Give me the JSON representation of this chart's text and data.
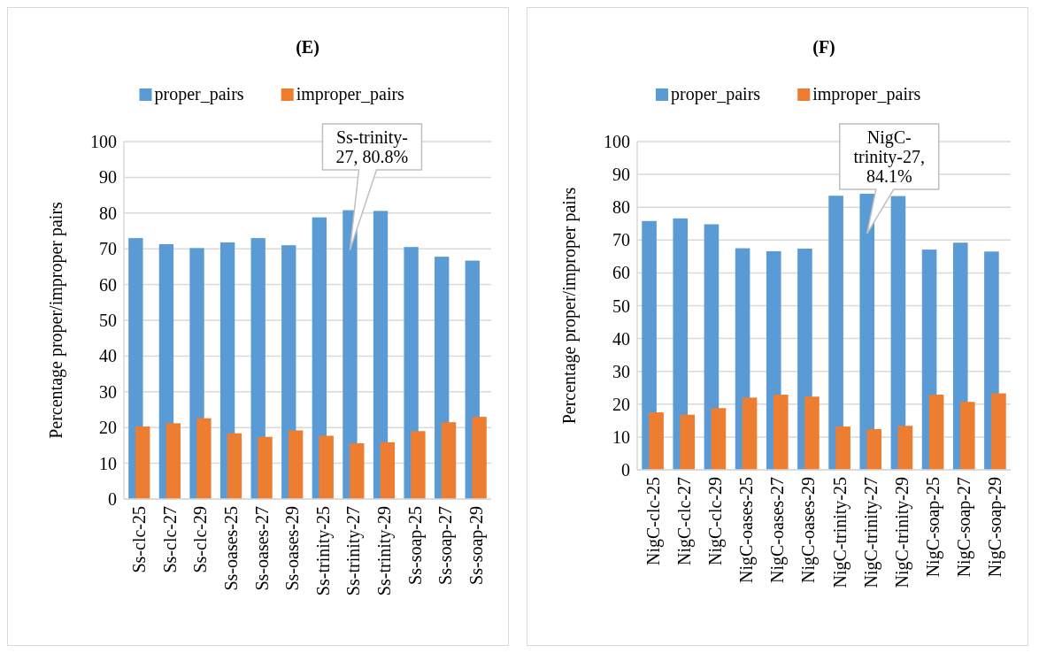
{
  "chart_data": [
    {
      "type": "bar",
      "title": "(E)",
      "ylabel": "Percentage proper/improper pairs",
      "categories": [
        "Ss-clc-25",
        "Ss-clc-27",
        "Ss-clc-29",
        "Ss-oases-25",
        "Ss-oases-27",
        "Ss-oases-29",
        "Ss-trinity-25",
        "Ss-trinity-27",
        "Ss-trinity-29",
        "Ss-soap-25",
        "Ss-soap-27",
        "Ss-soap-29"
      ],
      "series": [
        {
          "name": "proper_pairs",
          "color": "#5b9bd5",
          "values": [
            73,
            71.3,
            70.2,
            71.8,
            73,
            71,
            78.8,
            80.8,
            80.6,
            70.5,
            67.8,
            66.7
          ]
        },
        {
          "name": "improper_pairs",
          "color": "#ed7d31",
          "values": [
            20.3,
            21.2,
            22.6,
            18.4,
            17.4,
            19.2,
            17.7,
            15.6,
            15.9,
            19,
            21.5,
            23
          ]
        }
      ],
      "ylim": [
        0,
        100
      ],
      "yticks": [
        0,
        10,
        20,
        30,
        40,
        50,
        60,
        70,
        80,
        90,
        100
      ],
      "grid": "y",
      "legend": "top",
      "annotations": [
        {
          "text": "Ss-trinity-27, 80.8%",
          "x": "Ss-trinity-27",
          "y": 80.8
        }
      ]
    },
    {
      "type": "bar",
      "title": "(F)",
      "ylabel": "Percentage proper/improper pairs",
      "categories": [
        "NigC-clc-25",
        "NigC-clc-27",
        "NigC-clc-29",
        "NigC-oases-25",
        "NigC-oases-27",
        "NigC-oases-29",
        "NigC-trinity-25",
        "NigC-trinity-27",
        "NigC-trinity-29",
        "NigC-soap-25",
        "NigC-soap-27",
        "NigC-soap-29"
      ],
      "series": [
        {
          "name": "proper_pairs",
          "color": "#5b9bd5",
          "values": [
            75.8,
            76.6,
            74.8,
            67.5,
            66.6,
            67.4,
            83.5,
            84.1,
            83.4,
            67.1,
            69.2,
            66.5
          ]
        },
        {
          "name": "improper_pairs",
          "color": "#ed7d31",
          "values": [
            17.5,
            16.8,
            18.8,
            22,
            22.9,
            22.3,
            13.2,
            12.4,
            13.4,
            22.9,
            20.7,
            23.3
          ]
        }
      ],
      "ylim": [
        0,
        100
      ],
      "yticks": [
        0,
        10,
        20,
        30,
        40,
        50,
        60,
        70,
        80,
        90,
        100
      ],
      "grid": "y",
      "legend": "top",
      "annotations": [
        {
          "text": "NigC-trinity-27, 84.1%",
          "x": "NigC-trinity-27",
          "y": 84.1
        }
      ]
    }
  ]
}
